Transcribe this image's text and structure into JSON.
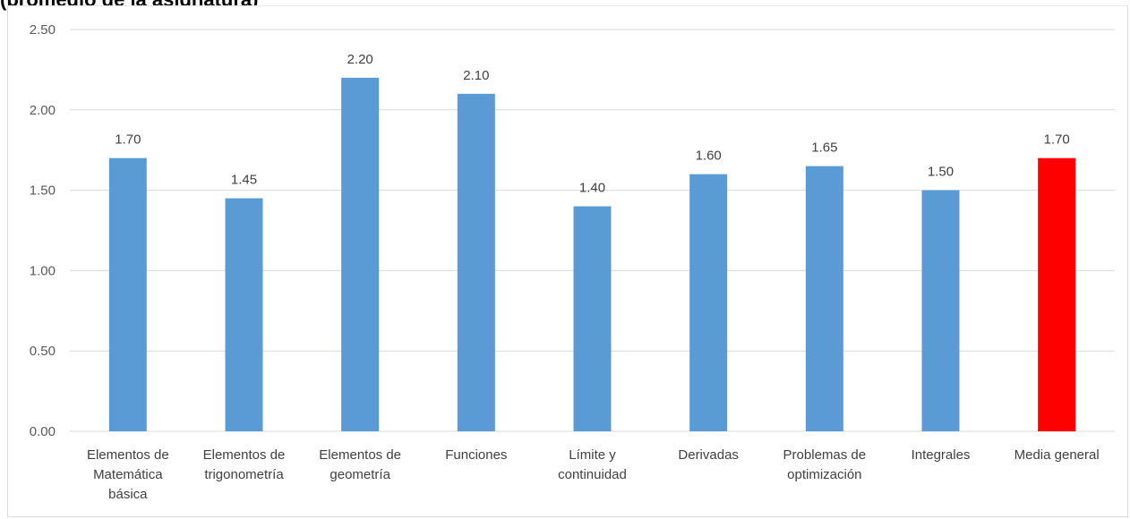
{
  "page_title": "(promedio de la asignatura)",
  "chart_data": {
    "type": "bar",
    "categories": [
      [
        "Elementos de",
        "Matemática",
        "básica"
      ],
      [
        "Elementos de",
        "trigonometría"
      ],
      [
        "Elementos de",
        "geometría"
      ],
      [
        "Funciones"
      ],
      [
        "Límite y",
        "continuidad"
      ],
      [
        "Derivadas"
      ],
      [
        "Problemas de",
        "optimización"
      ],
      [
        "Integrales"
      ],
      [
        "Media general"
      ]
    ],
    "values": [
      1.7,
      1.45,
      2.2,
      2.1,
      1.4,
      1.6,
      1.65,
      1.5,
      1.7
    ],
    "value_labels": [
      "1.70",
      "1.45",
      "2.20",
      "2.10",
      "1.40",
      "1.60",
      "1.65",
      "1.50",
      "1.70"
    ],
    "ylim": [
      0,
      2.5
    ],
    "yticks": [
      "0.00",
      "0.50",
      "1.00",
      "1.50",
      "2.00",
      "2.50"
    ],
    "grid": true,
    "colors": {
      "bar": "#5b9bd5",
      "highlight_bar": "#ff0000",
      "highlight_label": "#ff0000",
      "grid": "#d9d9d9"
    },
    "highlight_index": 8
  }
}
